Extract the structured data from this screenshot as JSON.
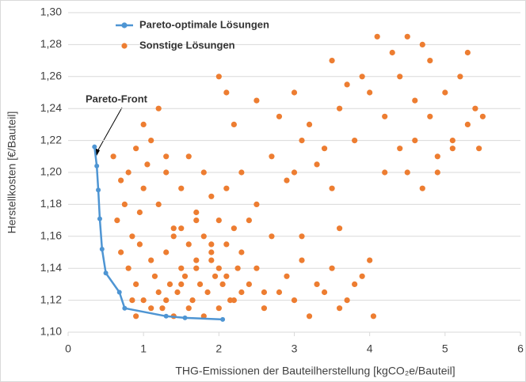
{
  "chart_data": {
    "type": "scatter",
    "xlabel": "THG-Emissionen der Bauteilherstellung [kgCO₂e/Bauteil]",
    "ylabel": "Herstellkosten [€/Bauteil]",
    "annotation": "Pareto-Front",
    "xlim": [
      0,
      6
    ],
    "xticks": [
      0,
      1,
      2,
      3,
      4,
      5,
      6
    ],
    "ylim": [
      1.1,
      1.3
    ],
    "yticks": [
      {
        "value": 1.1,
        "label": "1,10"
      },
      {
        "value": 1.12,
        "label": "1,12"
      },
      {
        "value": 1.14,
        "label": "1,14"
      },
      {
        "value": 1.16,
        "label": "1,16"
      },
      {
        "value": 1.18,
        "label": "1,18"
      },
      {
        "value": 1.2,
        "label": "1,20"
      },
      {
        "value": 1.22,
        "label": "1,22"
      },
      {
        "value": 1.24,
        "label": "1,24"
      },
      {
        "value": 1.26,
        "label": "1,26"
      },
      {
        "value": 1.28,
        "label": "1,28"
      },
      {
        "value": 1.3,
        "label": "1,30"
      }
    ],
    "grid": true,
    "legend": "upper left",
    "series": [
      {
        "name": "Pareto-optimale Lösungen",
        "color": "#4e95d3",
        "line": true,
        "x": [
          0.35,
          0.38,
          0.4,
          0.42,
          0.45,
          0.5,
          0.68,
          0.75,
          1.3,
          1.55,
          2.05
        ],
        "values": [
          1.216,
          1.204,
          1.189,
          1.171,
          1.152,
          1.137,
          1.125,
          1.115,
          1.11,
          1.109,
          1.108
        ]
      },
      {
        "name": "Sonstige Lösungen",
        "color": "#ed7d31",
        "line": false,
        "x": [
          0.6,
          0.7,
          0.8,
          0.9,
          1.0,
          0.65,
          0.75,
          0.85,
          0.95,
          1.05,
          1.1,
          1.2,
          1.3,
          1.4,
          1.5,
          1.6,
          1.7,
          1.8,
          1.9,
          2.0,
          0.8,
          0.9,
          1.0,
          1.1,
          1.2,
          0.7,
          0.85,
          1.15,
          1.25,
          0.95,
          1.3,
          1.4,
          1.5,
          1.6,
          1.7,
          1.8,
          1.9,
          2.0,
          2.1,
          2.2,
          1.35,
          1.45,
          1.55,
          1.65,
          1.75,
          1.85,
          1.95,
          2.05,
          2.15,
          2.25,
          1.4,
          1.6,
          1.8,
          2.0,
          2.2,
          2.4,
          2.6,
          1.5,
          1.7,
          1.9,
          2.3,
          2.5,
          2.7,
          2.9,
          3.1,
          3.3,
          3.5,
          3.7,
          3.9,
          2.4,
          2.6,
          2.8,
          3.0,
          3.2,
          3.4,
          3.6,
          3.8,
          4.0,
          4.05,
          3.1,
          2.1,
          2.3,
          2.5,
          2.7,
          2.9,
          3.1,
          3.3,
          3.5,
          2.2,
          2.8,
          3.0,
          3.2,
          3.4,
          3.6,
          3.8,
          4.0,
          4.2,
          4.4,
          4.6,
          4.8,
          5.0,
          5.2,
          5.4,
          5.5,
          5.3,
          5.1,
          4.9,
          4.7,
          4.5,
          4.3,
          4.1,
          3.9,
          3.7,
          4.5,
          4.7,
          4.9,
          5.1,
          5.3,
          5.45,
          4.6,
          2.0,
          2.1,
          1.2,
          1.3,
          1.0,
          2.5,
          3.0,
          3.5,
          4.2,
          4.8,
          0.9,
          1.1,
          1.3,
          1.5,
          1.7,
          1.9,
          2.1,
          2.3,
          3.6,
          4.4
        ],
        "values": [
          1.21,
          1.195,
          1.2,
          1.215,
          1.19,
          1.17,
          1.18,
          1.16,
          1.175,
          1.205,
          1.22,
          1.18,
          1.2,
          1.165,
          1.19,
          1.21,
          1.175,
          1.2,
          1.185,
          1.17,
          1.14,
          1.13,
          1.12,
          1.145,
          1.125,
          1.15,
          1.12,
          1.135,
          1.115,
          1.155,
          1.15,
          1.16,
          1.14,
          1.155,
          1.145,
          1.16,
          1.15,
          1.14,
          1.155,
          1.165,
          1.13,
          1.125,
          1.135,
          1.12,
          1.13,
          1.125,
          1.135,
          1.13,
          1.12,
          1.14,
          1.11,
          1.115,
          1.11,
          1.115,
          1.12,
          1.13,
          1.125,
          1.165,
          1.17,
          1.155,
          1.15,
          1.14,
          1.16,
          1.135,
          1.145,
          1.13,
          1.14,
          1.12,
          1.135,
          1.17,
          1.115,
          1.125,
          1.12,
          1.11,
          1.125,
          1.115,
          1.13,
          1.145,
          1.11,
          1.16,
          1.19,
          1.2,
          1.18,
          1.21,
          1.195,
          1.22,
          1.205,
          1.19,
          1.23,
          1.235,
          1.2,
          1.23,
          1.215,
          1.24,
          1.22,
          1.25,
          1.235,
          1.26,
          1.245,
          1.27,
          1.25,
          1.26,
          1.24,
          1.235,
          1.275,
          1.22,
          1.21,
          1.28,
          1.285,
          1.275,
          1.285,
          1.26,
          1.255,
          1.2,
          1.19,
          1.2,
          1.215,
          1.23,
          1.215,
          1.22,
          1.26,
          1.25,
          1.24,
          1.21,
          1.23,
          1.245,
          1.25,
          1.27,
          1.2,
          1.235,
          1.11,
          1.115,
          1.12,
          1.13,
          1.14,
          1.145,
          1.135,
          1.125,
          1.165,
          1.215
        ]
      }
    ]
  }
}
